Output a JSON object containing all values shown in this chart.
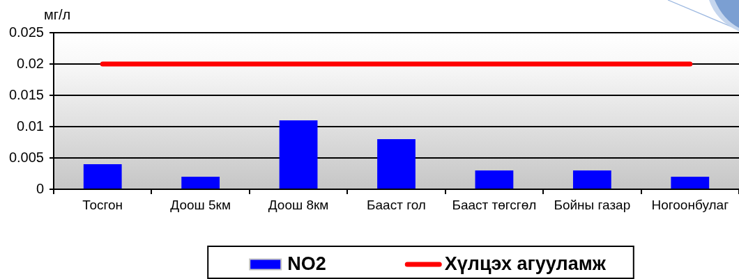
{
  "chart_data": {
    "type": "bar",
    "ylabel": "мг/л",
    "categories": [
      "Тосгон",
      "Доош 5км",
      "Доош 8км",
      "Бааст гол",
      "Бааст төгсгөл",
      "Бойны газар",
      "Ногоонбулаг"
    ],
    "series": [
      {
        "name": "NO2",
        "color": "#0000ff",
        "values": [
          0.004,
          0.002,
          0.011,
          0.008,
          0.003,
          0.003,
          0.002
        ]
      },
      {
        "name": "Хүлцэх агууламж",
        "type": "line",
        "color": "#ff0000",
        "values": [
          0.02,
          0.02,
          0.02,
          0.02,
          0.02,
          0.02,
          0.02
        ]
      }
    ],
    "ylim": [
      0,
      0.025
    ],
    "yticks": [
      0,
      0.005,
      0.01,
      0.015,
      0.02,
      0.025
    ],
    "grid": "y",
    "legend": "bottom",
    "marker": "none",
    "line_style": "solid"
  }
}
